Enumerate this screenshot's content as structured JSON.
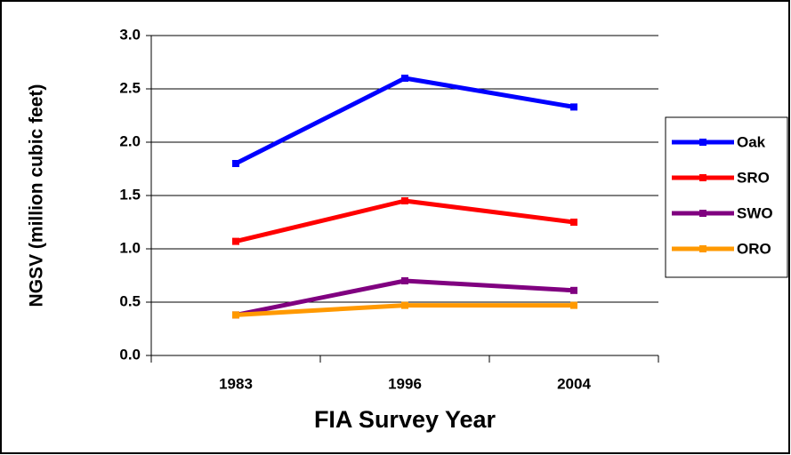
{
  "chart_data": {
    "type": "line",
    "x_label": "FIA Survey Year",
    "y_label": "NGSV (million cubic feet)",
    "categories": [
      "1983",
      "1996",
      "2004"
    ],
    "series": [
      {
        "name": "Oak",
        "color": "#0000ff",
        "values": [
          1.8,
          2.6,
          2.33
        ]
      },
      {
        "name": "SRO",
        "color": "#ff0000",
        "values": [
          1.07,
          1.45,
          1.25
        ]
      },
      {
        "name": "SWO",
        "color": "#800080",
        "values": [
          0.38,
          0.7,
          0.61
        ]
      },
      {
        "name": "ORO",
        "color": "#ff9900",
        "values": [
          0.38,
          0.47,
          0.47
        ]
      }
    ],
    "ylim": [
      0,
      3
    ],
    "yticks": [
      {
        "value": 0,
        "label": "0.0"
      },
      0.5,
      {
        "value": 1,
        "label": "1.0"
      },
      1.5,
      {
        "value": 2,
        "label": "2.0"
      },
      2.5,
      {
        "value": 3,
        "label": "3.0"
      }
    ],
    "grid": true,
    "legend": "right"
  }
}
